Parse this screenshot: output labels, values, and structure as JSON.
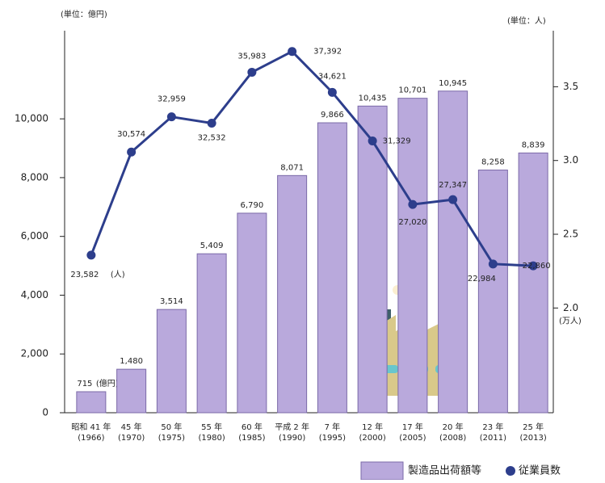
{
  "chart_data": {
    "type": "bar_line",
    "left_unit": "(単位：億円)",
    "right_unit": "(単位：人)",
    "right_axis_note": "(万人)",
    "bar_unit_note": "(億円)",
    "line_unit_note": "(人)",
    "categories": [
      "昭和 41 年",
      "45 年",
      "50 年",
      "55 年",
      "60 年",
      "平成 2 年",
      "7 年",
      "12 年",
      "17 年",
      "20 年",
      "23 年",
      "25 年"
    ],
    "category_years": [
      "(1966)",
      "(1970)",
      "(1975)",
      "(1980)",
      "(1985)",
      "(1990)",
      "(1995)",
      "(2000)",
      "(2005)",
      "(2008)",
      "(2011)",
      "(2013)"
    ],
    "series": [
      {
        "name": "製造品出荷額等",
        "color": "#b9a9dc",
        "values": [
          715,
          1480,
          3514,
          5409,
          6790,
          8071,
          9866,
          10435,
          10701,
          10945,
          8258,
          8839
        ],
        "value_labels": [
          "715",
          "1,480",
          "3,514",
          "5,409",
          "6,790",
          "8,071",
          "9,866",
          "10,435",
          "10,701",
          "10,945",
          "8,258",
          "8,839"
        ]
      },
      {
        "name": "従業員数",
        "color": "#2d3e8c",
        "axis": "y2",
        "values": [
          2.3582,
          3.0574,
          3.2959,
          3.2532,
          3.5983,
          3.7392,
          3.4621,
          3.1329,
          2.702,
          2.7347,
          2.2984,
          2.286
        ],
        "value_labels": [
          "23,582",
          "30,574",
          "32,959",
          "32,532",
          "35,983",
          "37,392",
          "34,621",
          "31,329",
          "27,020",
          "27,347",
          "22,984",
          "22,860"
        ]
      }
    ],
    "ylim": [
      0,
      13000
    ],
    "yticks": [
      0,
      {
        "value": 2000,
        "label": "2,000"
      },
      {
        "value": 4000,
        "label": "4,000"
      },
      {
        "value": 6000,
        "label": "6,000"
      },
      {
        "value": 8000,
        "label": "8,000"
      },
      {
        "value": 10000,
        "label": "10,000"
      }
    ],
    "y2lim": [
      1.29,
      3.88
    ],
    "y2ticks": [
      {
        "value": 2,
        "label": "2.0"
      },
      {
        "value": 2.5,
        "label": "2.5"
      },
      {
        "value": 3,
        "label": "3.0"
      },
      {
        "value": 3.5,
        "label": "3.5"
      }
    ]
  }
}
